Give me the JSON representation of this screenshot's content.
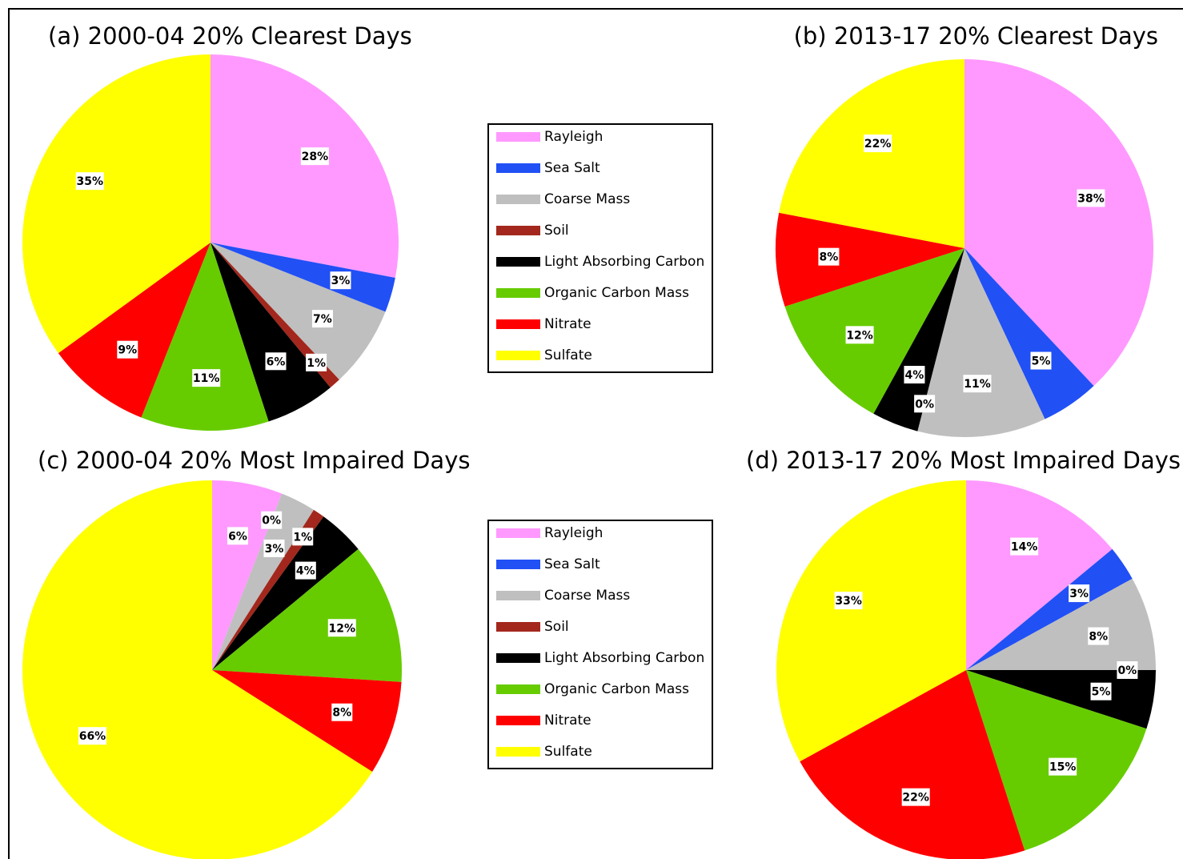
{
  "chart_data": [
    {
      "type": "pie",
      "title": "(a) 2000-04 20% Clearest Days",
      "categories": [
        "Rayleigh",
        "Sea Salt",
        "Coarse Mass",
        "Soil",
        "Light Absorbing Carbon",
        "Organic Carbon Mass",
        "Nitrate",
        "Sulfate"
      ],
      "values": [
        28,
        3,
        7,
        1,
        6,
        11,
        9,
        35
      ],
      "value_labels": [
        "28%",
        "3%",
        "7%",
        "1%",
        "6%",
        "11%",
        "9%",
        "35%"
      ],
      "colors": [
        "#ff99ff",
        "#2150f5",
        "#bfbfbf",
        "#a3271c",
        "#000000",
        "#66cc00",
        "#ff0000",
        "#ffff00"
      ],
      "legend": true
    },
    {
      "type": "pie",
      "title": "(b) 2013-17 20% Clearest Days",
      "categories": [
        "Rayleigh",
        "Sea Salt",
        "Coarse Mass",
        "Soil",
        "Light Absorbing Carbon",
        "Organic Carbon Mass",
        "Nitrate",
        "Sulfate"
      ],
      "values": [
        38,
        5,
        11,
        0,
        4,
        12,
        8,
        22
      ],
      "value_labels": [
        "38%",
        "5%",
        "11%",
        "0%",
        "4%",
        "12%",
        "8%",
        "22%"
      ],
      "colors": [
        "#ff99ff",
        "#2150f5",
        "#bfbfbf",
        "#a3271c",
        "#000000",
        "#66cc00",
        "#ff0000",
        "#ffff00"
      ],
      "legend": false
    },
    {
      "type": "pie",
      "title": "(c) 2000-04 20% Most Impaired Days",
      "categories": [
        "Rayleigh",
        "Sea Salt",
        "Coarse Mass",
        "Soil",
        "Light Absorbing Carbon",
        "Organic Carbon Mass",
        "Nitrate",
        "Sulfate"
      ],
      "values": [
        6,
        0,
        3,
        1,
        4,
        12,
        8,
        66
      ],
      "value_labels": [
        "6%",
        "0%",
        "3%",
        "1%",
        "4%",
        "12%",
        "8%",
        "66%"
      ],
      "colors": [
        "#ff99ff",
        "#2150f5",
        "#bfbfbf",
        "#a3271c",
        "#000000",
        "#66cc00",
        "#ff0000",
        "#ffff00"
      ],
      "legend": true
    },
    {
      "type": "pie",
      "title": "(d) 2013-17 20% Most Impaired Days",
      "categories": [
        "Rayleigh",
        "Sea Salt",
        "Coarse Mass",
        "Soil",
        "Light Absorbing Carbon",
        "Organic Carbon Mass",
        "Nitrate",
        "Sulfate"
      ],
      "values": [
        14,
        3,
        8,
        0,
        5,
        15,
        22,
        33
      ],
      "value_labels": [
        "14%",
        "3%",
        "8%",
        "0%",
        "5%",
        "15%",
        "22%",
        "33%"
      ],
      "colors": [
        "#ff99ff",
        "#2150f5",
        "#bfbfbf",
        "#a3271c",
        "#000000",
        "#66cc00",
        "#ff0000",
        "#ffff00"
      ],
      "legend": false
    }
  ]
}
